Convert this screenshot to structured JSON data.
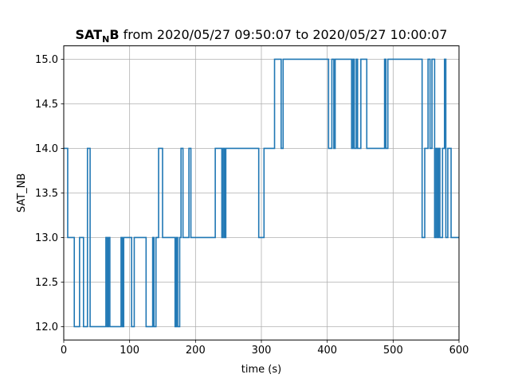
{
  "chart_data": {
    "type": "line",
    "step": "post",
    "title": {
      "bold_main": "SAT",
      "bold_subscript": "N",
      "bold_tail": "B",
      "rest": " from 2020/05/27 09:50:07 to 2020/05/27 10:00:07"
    },
    "xlabel": "time (s)",
    "ylabel": "SAT_NB",
    "xlim": [
      0,
      600
    ],
    "ylim": [
      11.85,
      15.15
    ],
    "xticks": [
      0,
      100,
      200,
      300,
      400,
      500,
      600
    ],
    "xtick_labels": [
      "0",
      "100",
      "200",
      "300",
      "400",
      "500",
      "600"
    ],
    "yticks": [
      12.0,
      12.5,
      13.0,
      13.5,
      14.0,
      14.5,
      15.0
    ],
    "ytick_labels": [
      "12.0",
      "12.5",
      "13.0",
      "13.5",
      "14.0",
      "14.5",
      "15.0"
    ],
    "grid": true,
    "color": "#1f77b4",
    "series": [
      {
        "x": [
          0,
          6,
          16,
          24,
          30,
          36,
          40,
          45,
          47,
          64,
          66,
          68,
          70,
          72,
          87,
          89,
          91,
          93,
          103,
          107,
          125,
          135,
          137,
          140,
          144,
          150,
          169,
          171,
          173,
          176,
          178,
          181,
          190,
          193,
          197,
          200,
          230,
          240,
          242,
          244,
          246,
          256,
          296,
          304,
          320,
          330,
          333,
          393,
          402,
          407,
          410,
          412,
          415,
          437,
          439,
          441,
          444,
          446,
          451,
          458,
          460,
          487,
          489,
          492,
          544,
          548,
          553,
          556,
          559,
          563,
          565,
          567,
          569,
          571,
          575,
          578,
          580,
          583,
          588,
          600
        ],
        "y": [
          14,
          13,
          12,
          13,
          12,
          14,
          12,
          12,
          12,
          13,
          12,
          13,
          12,
          12,
          13,
          12,
          13,
          13,
          12,
          13,
          12,
          13,
          12,
          13,
          14,
          13,
          12,
          13,
          12,
          13,
          14,
          13,
          14,
          13,
          13,
          13,
          14,
          13,
          14,
          13,
          14,
          14,
          13,
          14,
          15,
          14,
          15,
          15,
          14,
          15,
          14,
          15,
          15,
          14,
          15,
          14,
          15,
          14,
          15,
          15,
          14,
          15,
          14,
          15,
          13,
          14,
          15,
          14,
          15,
          13,
          14,
          13,
          14,
          13,
          14,
          15,
          13,
          14,
          13,
          13
        ]
      }
    ]
  }
}
